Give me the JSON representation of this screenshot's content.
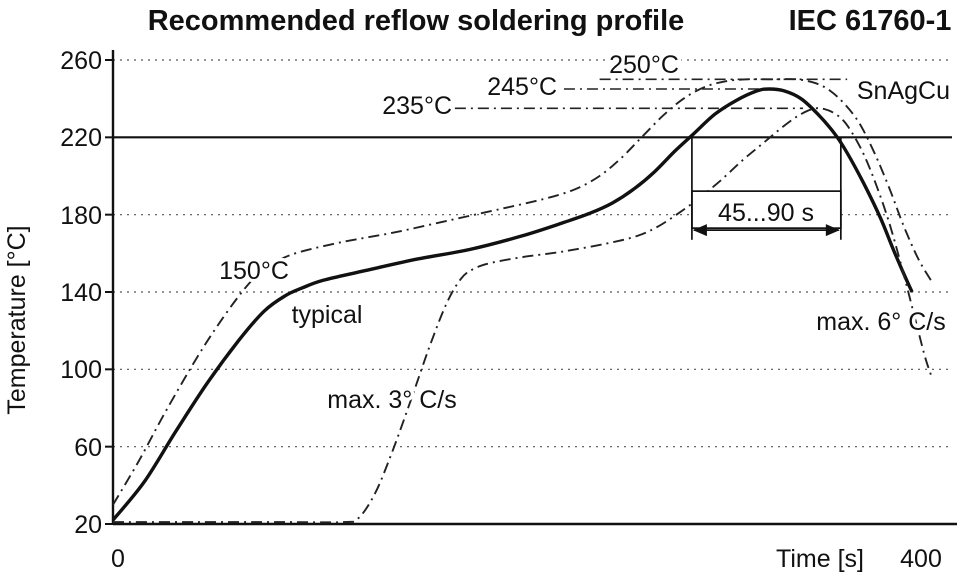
{
  "chart_data": {
    "type": "line",
    "title": "Recommended reflow soldering profile",
    "standard": "IEC 61760-1",
    "xlabel": "Time [s]",
    "ylabel": "Temperature [°C]",
    "xlim": [
      0,
      400
    ],
    "ylim": [
      20,
      260
    ],
    "xticks": [
      0,
      400
    ],
    "yticks": [
      20,
      60,
      100,
      140,
      180,
      220,
      260
    ],
    "grid": "horizontal-dotted",
    "legend": "none",
    "reference_line_temp": 220,
    "colors": {
      "curve": "#111111",
      "grid": "#555555",
      "background": "#ffffff"
    },
    "series": [
      {
        "name": "typical",
        "style": "solid",
        "points": [
          [
            0,
            22
          ],
          [
            15,
            42
          ],
          [
            30,
            68
          ],
          [
            45,
            93
          ],
          [
            60,
            115
          ],
          [
            72,
            130
          ],
          [
            82,
            138
          ],
          [
            90,
            142
          ],
          [
            100,
            146
          ],
          [
            120,
            151
          ],
          [
            145,
            157
          ],
          [
            170,
            162
          ],
          [
            195,
            169
          ],
          [
            215,
            176
          ],
          [
            228,
            181
          ],
          [
            238,
            186
          ],
          [
            248,
            193
          ],
          [
            258,
            202
          ],
          [
            268,
            213
          ],
          [
            277,
            222
          ],
          [
            287,
            232
          ],
          [
            297,
            239
          ],
          [
            307,
            244
          ],
          [
            313,
            245
          ],
          [
            320,
            244
          ],
          [
            328,
            240
          ],
          [
            336,
            232
          ],
          [
            344,
            222
          ],
          [
            350,
            212
          ],
          [
            358,
            196
          ],
          [
            366,
            178
          ],
          [
            372,
            162
          ],
          [
            378,
            147
          ],
          [
            381,
            140
          ]
        ]
      },
      {
        "name": "upper-limit",
        "style": "dashdot",
        "points": [
          [
            0,
            30
          ],
          [
            12,
            52
          ],
          [
            25,
            78
          ],
          [
            40,
            106
          ],
          [
            52,
            126
          ],
          [
            63,
            142
          ],
          [
            72,
            152
          ],
          [
            80,
            157
          ],
          [
            90,
            161
          ],
          [
            110,
            166
          ],
          [
            135,
            171
          ],
          [
            160,
            177
          ],
          [
            185,
            183
          ],
          [
            205,
            188
          ],
          [
            220,
            193
          ],
          [
            232,
            200
          ],
          [
            242,
            209
          ],
          [
            252,
            220
          ],
          [
            262,
            231
          ],
          [
            272,
            240
          ],
          [
            282,
            246
          ],
          [
            292,
            249
          ],
          [
            302,
            250
          ],
          [
            315,
            250
          ],
          [
            326,
            250
          ],
          [
            335,
            248
          ],
          [
            342,
            244
          ],
          [
            349,
            237
          ],
          [
            356,
            227
          ],
          [
            363,
            212
          ],
          [
            370,
            194
          ],
          [
            377,
            174
          ],
          [
            384,
            157
          ],
          [
            390,
            146
          ]
        ]
      },
      {
        "name": "lower-limit",
        "style": "dashdot",
        "points": [
          [
            0,
            21
          ],
          [
            40,
            21
          ],
          [
            80,
            21
          ],
          [
            110,
            21
          ],
          [
            117,
            23
          ],
          [
            125,
            36
          ],
          [
            133,
            57
          ],
          [
            142,
            84
          ],
          [
            151,
            112
          ],
          [
            159,
            134
          ],
          [
            166,
            147
          ],
          [
            172,
            152
          ],
          [
            180,
            155
          ],
          [
            195,
            158
          ],
          [
            215,
            161
          ],
          [
            235,
            165
          ],
          [
            250,
            169
          ],
          [
            260,
            174
          ],
          [
            270,
            181
          ],
          [
            280,
            189
          ],
          [
            290,
            198
          ],
          [
            300,
            208
          ],
          [
            310,
            217
          ],
          [
            320,
            226
          ],
          [
            328,
            232
          ],
          [
            335,
            235
          ],
          [
            341,
            234
          ],
          [
            347,
            230
          ],
          [
            352,
            223
          ],
          [
            358,
            211
          ],
          [
            364,
            195
          ],
          [
            370,
            176
          ],
          [
            376,
            153
          ],
          [
            382,
            128
          ],
          [
            387,
            107
          ],
          [
            390,
            97
          ]
        ]
      }
    ],
    "guide_lines": [
      {
        "temp": 235,
        "t1": 163,
        "t2": 329,
        "label": "235°C"
      },
      {
        "temp": 245,
        "t1": 215,
        "t2": 310,
        "label": "245°C"
      },
      {
        "temp": 250,
        "t1": 232,
        "t2": 350,
        "label": "250°C"
      }
    ],
    "window": {
      "label": "45...90 s",
      "t1": 276,
      "t2": 347,
      "top_temp": 220,
      "bottom_temp": 167,
      "arrow_temp": 172
    },
    "annotations": {
      "soak_temp": "150°C",
      "typical": "typical",
      "max_ramp_up": "max. 3° C/s",
      "max_ramp_down": "max. 6° C/s",
      "alloy": "SnAgCu"
    }
  }
}
